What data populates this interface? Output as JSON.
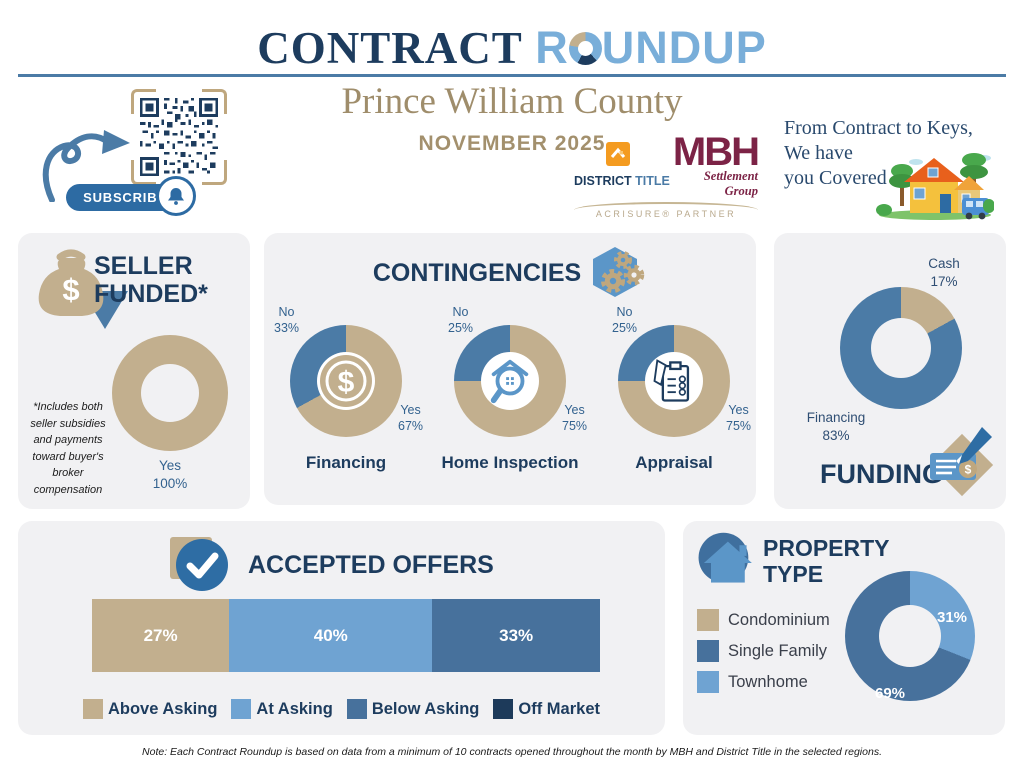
{
  "header": {
    "title_part1": "CONTRACT",
    "title_part2a": "R",
    "title_part2b": "UNDUP",
    "subtitle": "Prince William County",
    "month": "NOVEMBER 2025",
    "subscribe_label": "SUBSCRIBE",
    "tagline_line1": "From Contract to Keys,",
    "tagline_line2": "We have",
    "tagline_line3": "you Covered"
  },
  "logos": {
    "district_title_part1": "DISTRICT",
    "district_title_part2": "TITLE",
    "mbh_name": "MBH",
    "mbh_sub": "Settlement Group",
    "partner": "ACRISURE® PARTNER"
  },
  "seller_funded": {
    "title_line1": "SELLER",
    "title_line2": "FUNDED*",
    "yes_label": "Yes",
    "yes_value": "100%",
    "note": "*Includes both seller subsidies and payments toward buyer's broker compensation"
  },
  "contingencies": {
    "title": "CONTINGENCIES",
    "charts": [
      {
        "name": "Financing",
        "no_label": "No",
        "no_value": "33%",
        "yes_label": "Yes",
        "yes_value": "67%"
      },
      {
        "name": "Home Inspection",
        "no_label": "No",
        "no_value": "25%",
        "yes_label": "Yes",
        "yes_value": "75%"
      },
      {
        "name": "Appraisal",
        "no_label": "No",
        "no_value": "25%",
        "yes_label": "Yes",
        "yes_value": "75%"
      }
    ]
  },
  "funding": {
    "title": "FUNDING",
    "cash_label": "Cash",
    "cash_value": "17%",
    "financing_label": "Financing",
    "financing_value": "83%"
  },
  "accepted_offers": {
    "title": "ACCEPTED OFFERS",
    "legend": [
      {
        "label": "Above Asking",
        "color": "#c2af8e"
      },
      {
        "label": "At Asking",
        "color": "#6fa3d2"
      },
      {
        "label": "Below Asking",
        "color": "#47719c"
      },
      {
        "label": "Off Market",
        "color": "#1d3a5a"
      }
    ]
  },
  "property_type": {
    "title_line1": "PROPERTY",
    "title_line2": "TYPE",
    "townhome_value": "31%",
    "single_family_value": "69%",
    "legend": [
      {
        "label": "Condominium",
        "color": "#c2af8e"
      },
      {
        "label": "Single Family",
        "color": "#47719c"
      },
      {
        "label": "Townhome",
        "color": "#6fa3d2"
      }
    ]
  },
  "footer": {
    "note": "Note: Each Contract Roundup is based on data from a minimum of 10 contracts opened throughout the month by MBH and District Title in the selected regions."
  },
  "colors": {
    "navy": "#1d3c5e",
    "steel_blue": "#4b7ba6",
    "light_blue": "#6fa3d2",
    "medium_blue": "#47719c",
    "dark_navy": "#1d3a5a",
    "tan": "#c2af8e",
    "tan_text": "#9f8d6b",
    "maroon": "#7c2346",
    "orange": "#f49b20",
    "panel_bg": "#f1f1f3",
    "title_light_blue": "#79aed9"
  },
  "chart_data": [
    {
      "type": "pie",
      "title": "Seller Funded",
      "unit": "%",
      "slices": [
        {
          "label": "Yes",
          "value": 100,
          "color": "#c2af8e"
        }
      ]
    },
    {
      "type": "pie",
      "title": "Financing Contingency",
      "unit": "%",
      "slices": [
        {
          "label": "Yes",
          "value": 67,
          "color": "#c2af8e"
        },
        {
          "label": "No",
          "value": 33,
          "color": "#4b7ba6"
        }
      ]
    },
    {
      "type": "pie",
      "title": "Home Inspection Contingency",
      "unit": "%",
      "slices": [
        {
          "label": "Yes",
          "value": 75,
          "color": "#c2af8e"
        },
        {
          "label": "No",
          "value": 25,
          "color": "#4b7ba6"
        }
      ]
    },
    {
      "type": "pie",
      "title": "Appraisal Contingency",
      "unit": "%",
      "slices": [
        {
          "label": "Yes",
          "value": 75,
          "color": "#c2af8e"
        },
        {
          "label": "No",
          "value": 25,
          "color": "#4b7ba6"
        }
      ]
    },
    {
      "type": "pie",
      "title": "Funding",
      "unit": "%",
      "slices": [
        {
          "label": "Cash",
          "value": 17,
          "color": "#c2af8e"
        },
        {
          "label": "Financing",
          "value": 83,
          "color": "#4b7ba6"
        }
      ]
    },
    {
      "type": "bar",
      "title": "Accepted Offers",
      "unit": "%",
      "segments": [
        {
          "label": "Above Asking",
          "value": 27,
          "color": "#c2af8e"
        },
        {
          "label": "At Asking",
          "value": 40,
          "color": "#6fa3d2"
        },
        {
          "label": "Below Asking",
          "value": 33,
          "color": "#47719c"
        },
        {
          "label": "Off Market",
          "value": 0,
          "color": "#1d3a5a"
        }
      ]
    },
    {
      "type": "pie",
      "title": "Property Type",
      "unit": "%",
      "slices": [
        {
          "label": "Townhome",
          "value": 31,
          "color": "#6fa3d2"
        },
        {
          "label": "Single Family",
          "value": 69,
          "color": "#47719c"
        },
        {
          "label": "Condominium",
          "value": 0,
          "color": "#c2af8e"
        }
      ]
    }
  ]
}
